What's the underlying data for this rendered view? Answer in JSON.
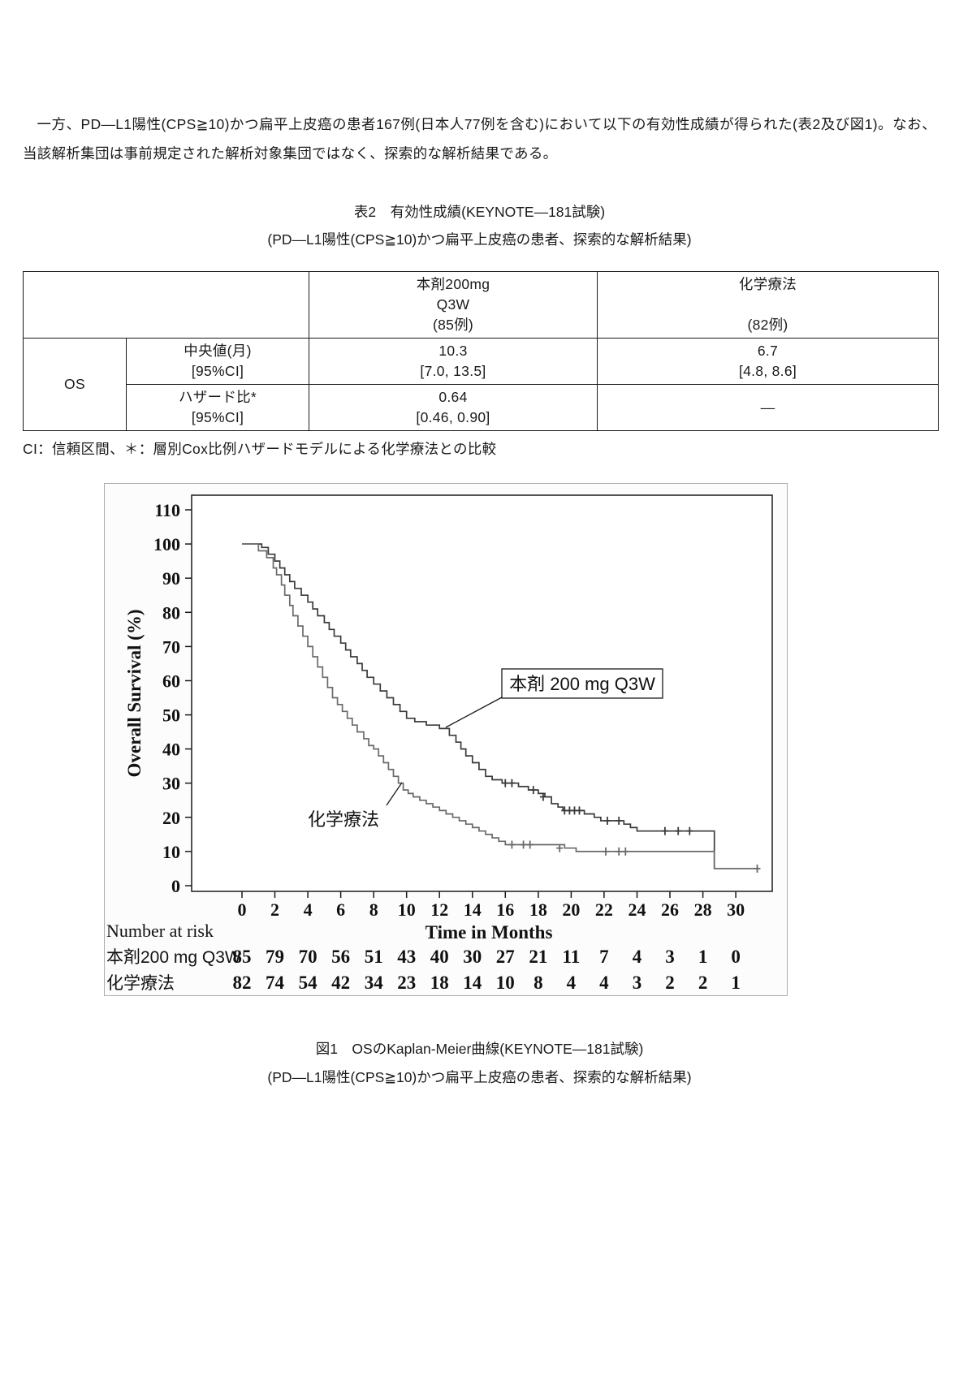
{
  "intro": {
    "text": "一方、PD—L1陽性(CPS≧10)かつ扁平上皮癌の患者167例(日本人77例を含む)において以下の有効性成績が得られた(表2及び図1)。なお、当該解析集団は事前規定された解析対象集団ではなく、探索的な解析結果である。"
  },
  "table": {
    "title": "表2　有効性成績(KEYNOTE—181試験)",
    "subtitle": "(PD—L1陽性(CPS≧10)かつ扁平上皮癌の患者、探索的な解析結果)",
    "header": {
      "drug": [
        "本剤200mg",
        "Q3W",
        "(85例)"
      ],
      "chemo": [
        "化学療法",
        "",
        "(82例)"
      ]
    },
    "row_group": "OS",
    "rows": [
      {
        "label": [
          "中央値(月)",
          "[95%CI]"
        ],
        "drug": [
          "10.3",
          "[7.0, 13.5]"
        ],
        "chemo": [
          "6.7",
          "[4.8, 8.6]"
        ]
      },
      {
        "label": [
          "ハザード比*",
          "[95%CI]"
        ],
        "drug": [
          "0.64",
          "[0.46, 0.90]"
        ],
        "chemo": [
          "—",
          ""
        ]
      }
    ],
    "footnote": "CI：信頼区間、＊：層別Cox比例ハザードモデルによる化学療法との比較"
  },
  "figure": {
    "caption1": "図1　OSのKaplan-Meier曲線(KEYNOTE—181試験)",
    "caption2": "(PD—L1陽性(CPS≧10)かつ扁平上皮癌の患者、探索的な解析結果)"
  },
  "chart_data": {
    "type": "line",
    "subtype": "kaplan-meier",
    "title": "",
    "xlabel": "Time in Months",
    "ylabel": "Overall Survival (%)",
    "xlim": [
      0,
      32
    ],
    "ylim": [
      0,
      110
    ],
    "xticks": [
      0,
      2,
      4,
      6,
      8,
      10,
      12,
      14,
      16,
      18,
      20,
      22,
      24,
      26,
      28,
      30
    ],
    "yticks": [
      110,
      100,
      90,
      80,
      70,
      60,
      50,
      40,
      30,
      20,
      10,
      0
    ],
    "grid": false,
    "series": [
      {
        "name": "本剤 200 mg Q3W",
        "color": "#3b3b3b",
        "points": [
          [
            0,
            100
          ],
          [
            1.2,
            99
          ],
          [
            1.6,
            97
          ],
          [
            2.0,
            95
          ],
          [
            2.3,
            93
          ],
          [
            2.6,
            91
          ],
          [
            2.9,
            89
          ],
          [
            3.2,
            87
          ],
          [
            3.6,
            85
          ],
          [
            4.0,
            83
          ],
          [
            4.3,
            81
          ],
          [
            4.6,
            79
          ],
          [
            5.0,
            77
          ],
          [
            5.3,
            75
          ],
          [
            5.6,
            73
          ],
          [
            6.0,
            71
          ],
          [
            6.3,
            69
          ],
          [
            6.6,
            67
          ],
          [
            7.0,
            65
          ],
          [
            7.3,
            63
          ],
          [
            7.6,
            61
          ],
          [
            8.0,
            59
          ],
          [
            8.4,
            57
          ],
          [
            8.8,
            55
          ],
          [
            9.2,
            53
          ],
          [
            9.6,
            51
          ],
          [
            10.0,
            49
          ],
          [
            10.5,
            48
          ],
          [
            11.2,
            47
          ],
          [
            12.0,
            46
          ],
          [
            12.6,
            44
          ],
          [
            13.0,
            42
          ],
          [
            13.3,
            40
          ],
          [
            13.6,
            38
          ],
          [
            14.0,
            36
          ],
          [
            14.4,
            34
          ],
          [
            14.8,
            32
          ],
          [
            15.2,
            31
          ],
          [
            15.8,
            30
          ],
          [
            16.8,
            29
          ],
          [
            17.4,
            28
          ],
          [
            18.0,
            27
          ],
          [
            18.4,
            26
          ],
          [
            18.8,
            24
          ],
          [
            19.2,
            23
          ],
          [
            19.5,
            22
          ],
          [
            20.8,
            21
          ],
          [
            21.4,
            20
          ],
          [
            21.8,
            19
          ],
          [
            23.2,
            18
          ],
          [
            23.6,
            17
          ],
          [
            24.0,
            16
          ],
          [
            28.7,
            5
          ]
        ],
        "censors": [
          [
            16.0,
            30
          ],
          [
            16.4,
            30
          ],
          [
            17.7,
            28
          ],
          [
            18.3,
            26
          ],
          [
            19.6,
            22
          ],
          [
            19.9,
            22
          ],
          [
            20.2,
            22
          ],
          [
            20.5,
            22
          ],
          [
            22.2,
            19
          ],
          [
            22.9,
            19
          ],
          [
            25.7,
            16
          ],
          [
            26.5,
            16
          ],
          [
            27.2,
            16
          ]
        ]
      },
      {
        "name": "化学療法",
        "color": "#6a6a6a",
        "points": [
          [
            0,
            100
          ],
          [
            1.0,
            98
          ],
          [
            1.5,
            96
          ],
          [
            1.9,
            93
          ],
          [
            2.1,
            91
          ],
          [
            2.4,
            88
          ],
          [
            2.6,
            85
          ],
          [
            2.9,
            82
          ],
          [
            3.1,
            79
          ],
          [
            3.4,
            76
          ],
          [
            3.7,
            73
          ],
          [
            4.0,
            70
          ],
          [
            4.3,
            67
          ],
          [
            4.6,
            64
          ],
          [
            4.9,
            61
          ],
          [
            5.2,
            58
          ],
          [
            5.5,
            55
          ],
          [
            5.8,
            53
          ],
          [
            6.1,
            51
          ],
          [
            6.4,
            49
          ],
          [
            6.7,
            47
          ],
          [
            7.0,
            45
          ],
          [
            7.4,
            43
          ],
          [
            7.7,
            41
          ],
          [
            8.0,
            40
          ],
          [
            8.3,
            38
          ],
          [
            8.6,
            36
          ],
          [
            8.9,
            34
          ],
          [
            9.2,
            32
          ],
          [
            9.5,
            30
          ],
          [
            9.8,
            28
          ],
          [
            10.1,
            27
          ],
          [
            10.4,
            26
          ],
          [
            10.8,
            25
          ],
          [
            11.2,
            24
          ],
          [
            11.6,
            23
          ],
          [
            12.0,
            22
          ],
          [
            12.4,
            21
          ],
          [
            12.8,
            20
          ],
          [
            13.2,
            19
          ],
          [
            13.6,
            18
          ],
          [
            14.0,
            17
          ],
          [
            14.4,
            16
          ],
          [
            14.8,
            15
          ],
          [
            15.2,
            14
          ],
          [
            15.6,
            13
          ],
          [
            16.0,
            12
          ],
          [
            19.6,
            11
          ],
          [
            20.3,
            10
          ],
          [
            28.7,
            5
          ],
          [
            31.4,
            5
          ]
        ],
        "censors": [
          [
            16.4,
            12
          ],
          [
            17.1,
            12
          ],
          [
            17.5,
            12
          ],
          [
            19.3,
            11
          ],
          [
            22.1,
            10
          ],
          [
            22.9,
            10
          ],
          [
            23.3,
            10
          ],
          [
            31.3,
            5
          ]
        ]
      }
    ],
    "annotations": [
      {
        "label": "本剤 200 mg Q3W",
        "boxed": true
      },
      {
        "label": "化学療法",
        "boxed": false
      }
    ],
    "number_at_risk": {
      "title": "Number at risk",
      "rows": [
        {
          "name": "本剤200 mg Q3W",
          "values": [
            85,
            79,
            70,
            56,
            51,
            43,
            40,
            30,
            27,
            21,
            11,
            7,
            4,
            3,
            1,
            0
          ]
        },
        {
          "name": "化学療法",
          "values": [
            82,
            74,
            54,
            42,
            34,
            23,
            18,
            14,
            10,
            8,
            4,
            4,
            3,
            2,
            2,
            1
          ]
        }
      ]
    }
  }
}
